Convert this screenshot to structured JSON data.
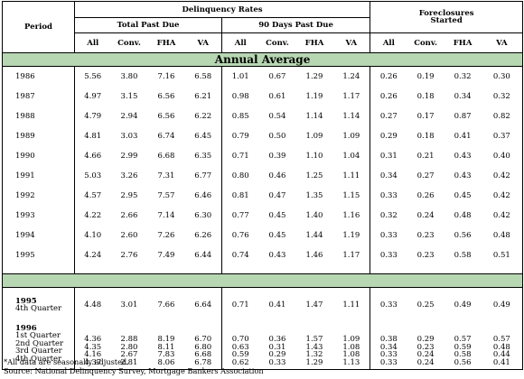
{
  "headers": {
    "period": "Period",
    "delinquency_rates": "Delinquency Rates",
    "total_past_due": "Total Past Due",
    "ninety_days": "90 Days Past Due",
    "foreclosures_line1": "Foreclosures",
    "foreclosures_line2": "Started",
    "cols": [
      "All",
      "Conv.",
      "FHA",
      "VA",
      "All",
      "Conv.",
      "FHA",
      "VA",
      "All",
      "Conv.",
      "FHA",
      "VA"
    ]
  },
  "annual_band": "Annual Average",
  "annual_rows": [
    {
      "period": "1986",
      "v": [
        "5.56",
        "3.80",
        "7.16",
        "6.58",
        "1.01",
        "0.67",
        "1.29",
        "1.24",
        "0.26",
        "0.19",
        "0.32",
        "0.30"
      ]
    },
    {
      "period": "1987",
      "v": [
        "4.97",
        "3.15",
        "6.56",
        "6.21",
        "0.98",
        "0.61",
        "1.19",
        "1.17",
        "0.26",
        "0.18",
        "0.34",
        "0.32"
      ]
    },
    {
      "period": "1988",
      "v": [
        "4.79",
        "2.94",
        "6.56",
        "6.22",
        "0.85",
        "0.54",
        "1.14",
        "1.14",
        "0.27",
        "0.17",
        "0.87",
        "0.82"
      ]
    },
    {
      "period": "1989",
      "v": [
        "4.81",
        "3.03",
        "6.74",
        "6.45",
        "0.79",
        "0.50",
        "1.09",
        "1.09",
        "0.29",
        "0.18",
        "0.41",
        "0.37"
      ]
    },
    {
      "period": "1990",
      "v": [
        "4.66",
        "2.99",
        "6.68",
        "6.35",
        "0.71",
        "0.39",
        "1.10",
        "1.04",
        "0.31",
        "0.21",
        "0.43",
        "0.40"
      ]
    },
    {
      "period": "1991",
      "v": [
        "5.03",
        "3.26",
        "7.31",
        "6.77",
        "0.80",
        "0.46",
        "1.25",
        "1.11",
        "0.34",
        "0.27",
        "0.43",
        "0.42"
      ]
    },
    {
      "period": "1992",
      "v": [
        "4.57",
        "2.95",
        "7.57",
        "6.46",
        "0.81",
        "0.47",
        "1.35",
        "1.15",
        "0.33",
        "0.26",
        "0.45",
        "0.42"
      ]
    },
    {
      "period": "1993",
      "v": [
        "4.22",
        "2.66",
        "7.14",
        "6.30",
        "0.77",
        "0.45",
        "1.40",
        "1.16",
        "0.32",
        "0.24",
        "0.48",
        "0.42"
      ]
    },
    {
      "period": "1994",
      "v": [
        "4.10",
        "2.60",
        "7.26",
        "6.26",
        "0.76",
        "0.45",
        "1.44",
        "1.19",
        "0.33",
        "0.23",
        "0.56",
        "0.48"
      ]
    },
    {
      "period": "1995",
      "v": [
        "4.24",
        "2.76",
        "7.49",
        "6.44",
        "0.74",
        "0.43",
        "1.46",
        "1.17",
        "0.33",
        "0.23",
        "0.58",
        "0.51"
      ]
    }
  ],
  "q1995": {
    "year": "1995",
    "label": "4th Quarter",
    "v": [
      "4.48",
      "3.01",
      "7.66",
      "6.64",
      "0.71",
      "0.41",
      "1.47",
      "1.11",
      "0.33",
      "0.25",
      "0.49",
      "0.49"
    ]
  },
  "q1996": {
    "year": "1996",
    "labels": "1st Quarter\n2nd Quarter\n3rd Quarter\n4th Quarter",
    "v": [
      "4.36\n4.35\n4.16\n4.37",
      "2.88\n2.80\n2.67\n2.81",
      "8.19\n8.11\n7.83\n8.06",
      "6.70\n6.80\n6.68\n6.78",
      "0.70\n0.63\n0.59\n0.62",
      "0.36\n0.31\n0.29\n0.33",
      "1.57\n1.43\n1.32\n1.29",
      "1.09\n1.08\n1.08\n1.13",
      "0.38\n0.34\n0.33\n0.33",
      "0.29\n0.23\n0.24\n0.24",
      "0.57\n0.59\n0.58\n0.56",
      "0.57\n0.48\n0.44\n0.41"
    ]
  },
  "footnotes": {
    "line1": "*All data are seasonally adjusted.",
    "line2": "Source: National Delinquency Survey, Mortgage Bankers Association"
  }
}
